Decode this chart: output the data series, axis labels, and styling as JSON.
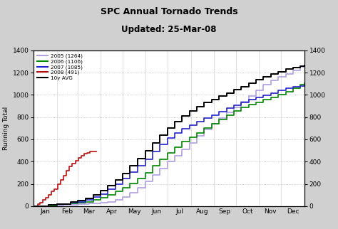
{
  "title": "SPC Annual Tornado Trends",
  "subtitle": "Updated: 25-Mar-08",
  "ylabel": "Running Total",
  "background_color": "#d0d0d0",
  "plot_bg_color": "#ffffff",
  "ylim": [
    0,
    1400
  ],
  "yticks": [
    0,
    200,
    400,
    600,
    800,
    1000,
    1200,
    1400
  ],
  "month_labels": [
    "Jan",
    "Feb",
    "Mar",
    "Apr",
    "May",
    "Jun",
    "Jul",
    "Aug",
    "Sep",
    "Oct",
    "Nov",
    "Dec"
  ],
  "legend": [
    {
      "label": "2005 (1264)",
      "color": "#b0a0e0"
    },
    {
      "label": "2006 (1106)",
      "color": "#008800"
    },
    {
      "label": "2007 (1085)",
      "color": "#2222cc"
    },
    {
      "label": "2008 (491)",
      "color": "#bb1111"
    },
    {
      "label": "10y AVG",
      "color": "#000000"
    }
  ],
  "month_days": [
    0,
    31,
    59,
    90,
    120,
    151,
    181,
    212,
    243,
    273,
    304,
    334,
    365
  ],
  "x_2005": [
    0,
    20,
    31,
    40,
    59,
    75,
    90,
    100,
    110,
    120,
    130,
    140,
    151,
    160,
    170,
    181,
    190,
    200,
    210,
    220,
    230,
    240,
    250,
    260,
    270,
    280,
    290,
    300,
    310,
    320,
    330,
    340,
    350,
    360,
    365
  ],
  "y_2005": [
    0,
    5,
    8,
    12,
    18,
    22,
    28,
    38,
    55,
    80,
    120,
    165,
    220,
    280,
    340,
    400,
    455,
    510,
    570,
    630,
    690,
    740,
    790,
    840,
    890,
    940,
    990,
    1040,
    1090,
    1130,
    1160,
    1190,
    1220,
    1255,
    1264
  ],
  "x_2006": [
    0,
    20,
    31,
    50,
    59,
    70,
    80,
    90,
    100,
    110,
    120,
    130,
    140,
    151,
    160,
    170,
    181,
    190,
    200,
    210,
    220,
    230,
    240,
    250,
    260,
    270,
    280,
    290,
    300,
    310,
    320,
    330,
    340,
    350,
    360,
    365
  ],
  "y_2006": [
    0,
    8,
    15,
    22,
    30,
    40,
    55,
    75,
    100,
    130,
    165,
    205,
    250,
    300,
    360,
    420,
    480,
    530,
    580,
    620,
    660,
    700,
    740,
    780,
    820,
    855,
    885,
    910,
    935,
    960,
    980,
    1000,
    1030,
    1060,
    1090,
    1106
  ],
  "x_2007": [
    0,
    20,
    31,
    50,
    59,
    70,
    80,
    90,
    100,
    110,
    120,
    130,
    140,
    151,
    160,
    170,
    181,
    190,
    200,
    210,
    220,
    230,
    240,
    250,
    260,
    270,
    280,
    290,
    300,
    310,
    320,
    330,
    340,
    350,
    360,
    365
  ],
  "y_2007": [
    0,
    10,
    18,
    28,
    40,
    58,
    80,
    110,
    150,
    195,
    250,
    305,
    360,
    420,
    490,
    555,
    610,
    655,
    695,
    730,
    760,
    790,
    820,
    850,
    880,
    905,
    930,
    955,
    975,
    995,
    1015,
    1040,
    1060,
    1070,
    1080,
    1085
  ],
  "x_2008": [
    0,
    5,
    8,
    12,
    16,
    20,
    24,
    28,
    32,
    36,
    40,
    44,
    48,
    52,
    56,
    60,
    64,
    68,
    72,
    76,
    80,
    84
  ],
  "y_2008": [
    0,
    15,
    30,
    55,
    75,
    100,
    130,
    155,
    195,
    235,
    275,
    320,
    355,
    385,
    410,
    435,
    455,
    470,
    480,
    488,
    491,
    491
  ],
  "x_avg": [
    0,
    20,
    31,
    50,
    59,
    70,
    80,
    90,
    100,
    110,
    120,
    130,
    140,
    151,
    160,
    170,
    181,
    190,
    200,
    210,
    220,
    230,
    240,
    250,
    260,
    270,
    280,
    290,
    300,
    310,
    320,
    330,
    340,
    350,
    360,
    365
  ],
  "y_avg": [
    0,
    10,
    20,
    35,
    50,
    70,
    100,
    140,
    185,
    235,
    295,
    360,
    425,
    500,
    570,
    640,
    705,
    760,
    810,
    855,
    895,
    930,
    960,
    990,
    1015,
    1045,
    1075,
    1105,
    1135,
    1160,
    1185,
    1210,
    1230,
    1245,
    1258,
    1265
  ]
}
